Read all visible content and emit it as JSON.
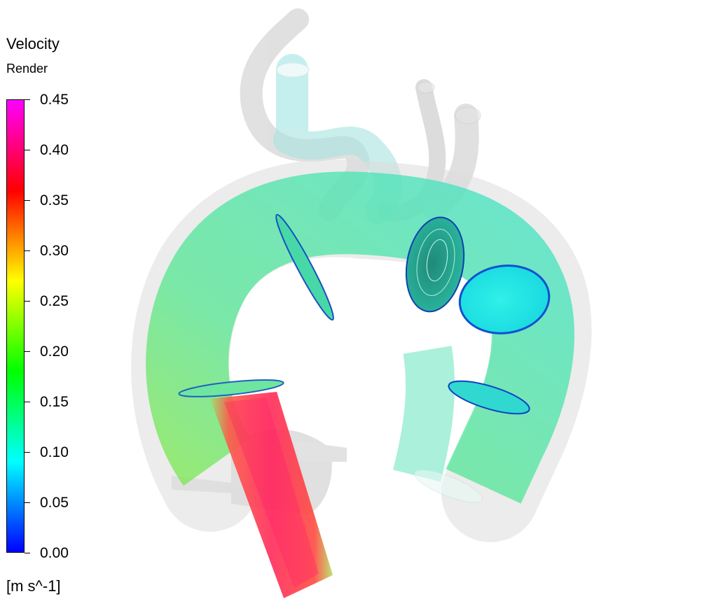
{
  "legend": {
    "title": "Velocity",
    "subtitle": "Render",
    "unit": "[m s^-1]",
    "ticks": [
      "0.45",
      "0.40",
      "0.35",
      "0.30",
      "0.25",
      "0.20",
      "0.15",
      "0.10",
      "0.05",
      "0.00"
    ],
    "range": [
      0.0,
      0.45
    ],
    "colormap": [
      "#0000ff",
      "#00ffff",
      "#00ff00",
      "#ffff00",
      "#ff0000",
      "#ff00ff"
    ]
  },
  "colors": {
    "vessel_shell": "#c8c8c8",
    "low_velocity": "#33e0c8",
    "mid_velocity": "#66e855",
    "high_velocity": "#ff2a55",
    "contour_edge": "#1040d0"
  }
}
